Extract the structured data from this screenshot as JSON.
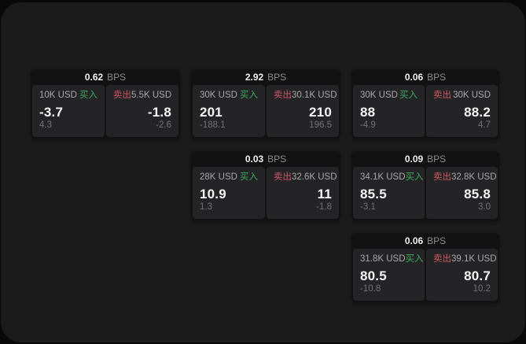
{
  "labels": {
    "bps": "BPS",
    "buy": "买入",
    "sell": "卖出"
  },
  "colors": {
    "panel_background": "#1b1b1b",
    "card_background": "#121213",
    "tile_background": "#242426",
    "buy_green": "#3cab5e",
    "sell_red": "#d15565"
  },
  "cards": [
    {
      "bps": "0.62",
      "buy": {
        "amount": "10K USD",
        "price": "-3.7",
        "delta": "4.3"
      },
      "sell": {
        "amount": "5.5K USD",
        "price": "-1.8",
        "delta": "-2.6"
      }
    },
    {
      "bps": "2.92",
      "buy": {
        "amount": "30K USD",
        "price": "201",
        "delta": "-188.1"
      },
      "sell": {
        "amount": "30.1K USD",
        "price": "210",
        "delta": "196.5"
      }
    },
    {
      "bps": "0.06",
      "buy": {
        "amount": "30K USD",
        "price": "88",
        "delta": "-4.9"
      },
      "sell": {
        "amount": "30K USD",
        "price": "88.2",
        "delta": "4.7"
      }
    },
    {
      "bps": "0.03",
      "buy": {
        "amount": "28K USD",
        "price": "10.9",
        "delta": "1.3"
      },
      "sell": {
        "amount": "32.6K USD",
        "price": "11",
        "delta": "-1.8"
      }
    },
    {
      "bps": "0.09",
      "buy": {
        "amount": "34.1K USD",
        "price": "85.5",
        "delta": "-3.1"
      },
      "sell": {
        "amount": "32.8K USD",
        "price": "85.8",
        "delta": "3.0"
      }
    },
    {
      "bps": "0.06",
      "buy": {
        "amount": "31.8K USD",
        "price": "80.5",
        "delta": "-10.8"
      },
      "sell": {
        "amount": "39.1K USD",
        "price": "80.7",
        "delta": "10.2"
      }
    }
  ]
}
